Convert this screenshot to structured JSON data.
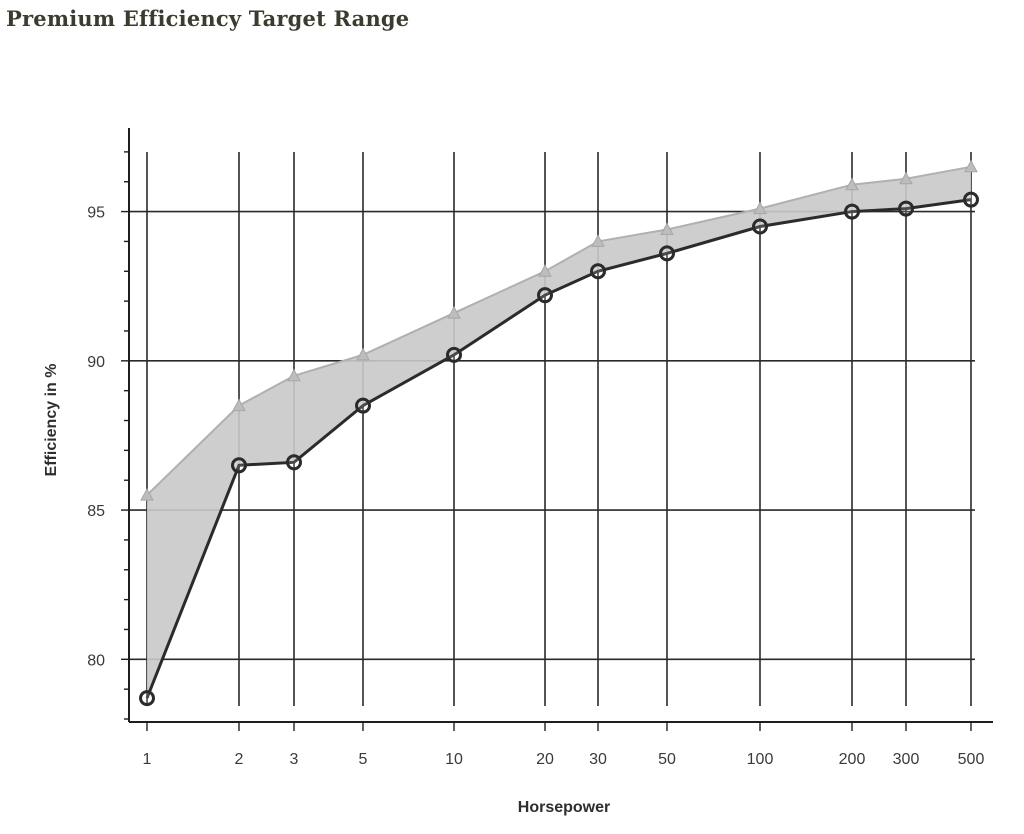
{
  "chart_data": {
    "type": "line",
    "title": "Premium Efficiency Target Range",
    "xlabel": "Horsepower",
    "ylabel": "Efficiency in %",
    "x_scale": "log",
    "x": [
      1,
      2,
      3,
      5,
      10,
      20,
      30,
      50,
      100,
      200,
      300,
      500
    ],
    "x_tick_labels": [
      "1",
      "2",
      "3",
      "5",
      "10",
      "20",
      "30",
      "50",
      "100",
      "200",
      "300",
      "500"
    ],
    "y_ticks": [
      80,
      85,
      90,
      95
    ],
    "y_tick_labels": [
      "80",
      "85",
      "90",
      "95"
    ],
    "ylim": [
      77.9,
      97.8
    ],
    "grid": true,
    "shaded_range": "between series",
    "series": [
      {
        "marker": "triangle",
        "color": "#b0b0b0",
        "values": [
          85.5,
          88.5,
          89.5,
          90.2,
          91.6,
          93.0,
          94.0,
          94.4,
          95.1,
          95.9,
          96.1,
          96.5
        ]
      },
      {
        "marker": "circle",
        "color": "#2b2b2b",
        "values": [
          78.7,
          86.5,
          86.6,
          88.5,
          90.2,
          92.2,
          93.0,
          93.6,
          94.5,
          95.0,
          95.1,
          95.4
        ]
      }
    ]
  }
}
